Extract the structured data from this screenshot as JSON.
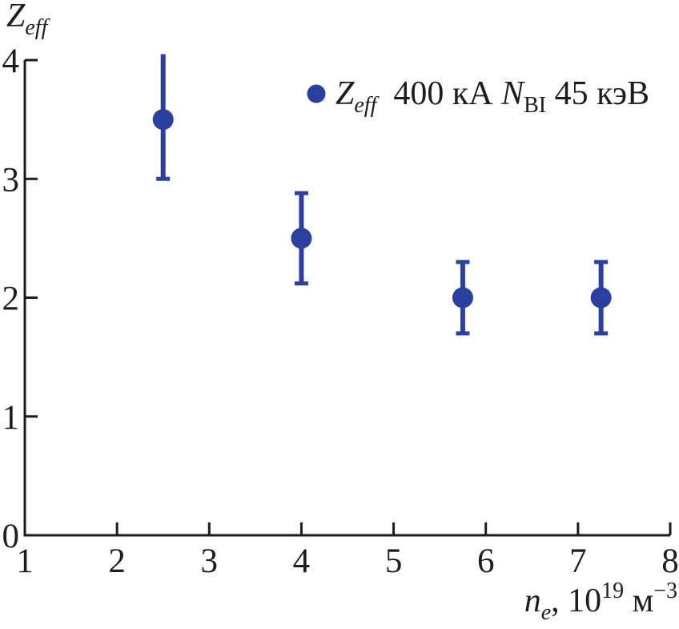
{
  "colors": {
    "marker": "#2B3F9E",
    "axis": "#1F1C1D",
    "text": "#1F1C1D",
    "background": "#FFFFFF"
  },
  "axes": {
    "x": {
      "tick_labels": [
        "1",
        "2",
        "3",
        "4",
        "5",
        "6",
        "7",
        "8"
      ],
      "tick_values": [
        1,
        2,
        3,
        4,
        5,
        6,
        7,
        8
      ],
      "label_parts": [
        {
          "t": "n",
          "style": "i"
        },
        {
          "t": "e",
          "style": "sub-i"
        },
        {
          "t": ", 10",
          "style": "n"
        },
        {
          "t": "19",
          "style": "sup"
        },
        {
          "t": " м",
          "style": "n"
        },
        {
          "t": "−3",
          "style": "sup"
        }
      ]
    },
    "y": {
      "tick_labels": [
        "0",
        "1",
        "2",
        "3",
        "4"
      ],
      "tick_values": [
        0,
        1,
        2,
        3,
        4
      ],
      "label_parts": [
        {
          "t": "Z",
          "style": "i"
        },
        {
          "t": "eff",
          "style": "sub-i"
        }
      ]
    }
  },
  "legend": {
    "marker_icon": "filled-circle-icon",
    "parts": [
      {
        "t": "Z",
        "style": "i"
      },
      {
        "t": "eff",
        "style": "sub-i"
      },
      {
        "t": "  400 кА ",
        "style": "n"
      },
      {
        "t": "N",
        "style": "i"
      },
      {
        "t": "BI",
        "style": "sub"
      },
      {
        "t": " 45 кэВ",
        "style": "n"
      }
    ]
  },
  "chart_data": {
    "type": "scatter",
    "title": "",
    "xlabel": "n_e, 10^19 м^-3",
    "ylabel": "Z_eff",
    "xlim": [
      1,
      8
    ],
    "ylim": [
      0,
      4
    ],
    "grid": false,
    "legend_position": "upper center",
    "legend_label": "Z_eff 400 кА N_BI 45 кэВ",
    "series": [
      {
        "name": "Zeff 400 kA NBI 45 keV",
        "points": [
          {
            "x": 2.5,
            "y": 3.5,
            "err_up": 0.55,
            "err_down": 0.5,
            "cap_top": false,
            "cap_bottom": true
          },
          {
            "x": 4.0,
            "y": 2.5,
            "err_up": 0.38,
            "err_down": 0.38,
            "cap_top": true,
            "cap_bottom": true
          },
          {
            "x": 5.75,
            "y": 2.0,
            "err_up": 0.3,
            "err_down": 0.3,
            "cap_top": true,
            "cap_bottom": true
          },
          {
            "x": 7.25,
            "y": 2.0,
            "err_up": 0.3,
            "err_down": 0.3,
            "cap_top": true,
            "cap_bottom": true
          }
        ]
      }
    ]
  }
}
